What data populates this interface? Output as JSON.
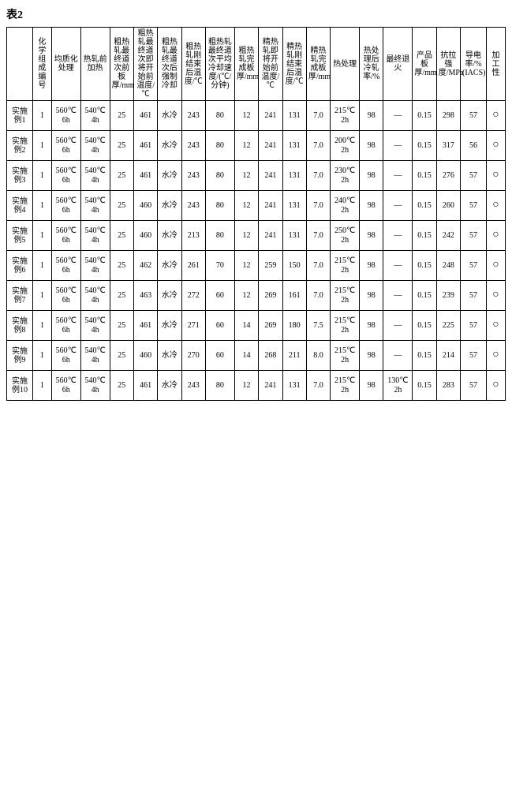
{
  "caption": "表2",
  "headers": [
    "",
    "化学组成编号",
    "均质化处理",
    "热轧前加热",
    "粗热轧最终道次前板厚/mm",
    "粗热轧最终道次即将开始前温度/℃",
    "粗热轧最终道次后强制冷却",
    "粗热轧刚结束后温度/℃",
    "粗热轧最终道次平均冷却速度/(℃/分钟)",
    "粗热轧完成板厚/mm",
    "精热轧即将开始前温度/℃",
    "精热轧刚结束后温度/℃",
    "精热轧完成板厚/mm",
    "热处理",
    "热处理后冷轧率/%",
    "最终退火",
    "产品板厚/mm",
    "抗拉强度/MPa",
    "导电率/%(IACS)",
    "加工性"
  ],
  "rows": [
    {
      "label": "实施例1",
      "chem": "1",
      "hom": "560℃\n6h",
      "preheat": "540℃\n4h",
      "rpt": "25",
      "rtb": "461",
      "cool": "水冷",
      "rta": "243",
      "rate": "80",
      "rft": "12",
      "ftb": "241",
      "fta": "131",
      "fft": "7.0",
      "ht": "215℃\n2h",
      "cr": "98",
      "fa": "—",
      "pt": "0.15",
      "ts": "298",
      "ec": "57",
      "wk": "○"
    },
    {
      "label": "实施例2",
      "chem": "1",
      "hom": "560℃\n6h",
      "preheat": "540℃\n4h",
      "rpt": "25",
      "rtb": "461",
      "cool": "水冷",
      "rta": "243",
      "rate": "80",
      "rft": "12",
      "ftb": "241",
      "fta": "131",
      "fft": "7.0",
      "ht": "200℃\n2h",
      "cr": "98",
      "fa": "—",
      "pt": "0.15",
      "ts": "317",
      "ec": "56",
      "wk": "○"
    },
    {
      "label": "实施例3",
      "chem": "1",
      "hom": "560℃\n6h",
      "preheat": "540℃\n4h",
      "rpt": "25",
      "rtb": "461",
      "cool": "水冷",
      "rta": "243",
      "rate": "80",
      "rft": "12",
      "ftb": "241",
      "fta": "131",
      "fft": "7.0",
      "ht": "230℃\n2h",
      "cr": "98",
      "fa": "—",
      "pt": "0.15",
      "ts": "276",
      "ec": "57",
      "wk": "○"
    },
    {
      "label": "实施例4",
      "chem": "1",
      "hom": "560℃\n6h",
      "preheat": "540℃\n4h",
      "rpt": "25",
      "rtb": "460",
      "cool": "水冷",
      "rta": "243",
      "rate": "80",
      "rft": "12",
      "ftb": "241",
      "fta": "131",
      "fft": "7.0",
      "ht": "240℃\n2h",
      "cr": "98",
      "fa": "—",
      "pt": "0.15",
      "ts": "260",
      "ec": "57",
      "wk": "○"
    },
    {
      "label": "实施例5",
      "chem": "1",
      "hom": "560℃\n6h",
      "preheat": "540℃\n4h",
      "rpt": "25",
      "rtb": "460",
      "cool": "水冷",
      "rta": "213",
      "rate": "80",
      "rft": "12",
      "ftb": "241",
      "fta": "131",
      "fft": "7.0",
      "ht": "250℃\n2h",
      "cr": "98",
      "fa": "—",
      "pt": "0.15",
      "ts": "242",
      "ec": "57",
      "wk": "○"
    },
    {
      "label": "实施例6",
      "chem": "1",
      "hom": "560℃\n6h",
      "preheat": "540℃\n4h",
      "rpt": "25",
      "rtb": "462",
      "cool": "水冷",
      "rta": "261",
      "rate": "70",
      "rft": "12",
      "ftb": "259",
      "fta": "150",
      "fft": "7.0",
      "ht": "215℃\n2h",
      "cr": "98",
      "fa": "—",
      "pt": "0.15",
      "ts": "248",
      "ec": "57",
      "wk": "○"
    },
    {
      "label": "实施例7",
      "chem": "1",
      "hom": "560℃\n6h",
      "preheat": "540℃\n4h",
      "rpt": "25",
      "rtb": "463",
      "cool": "水冷",
      "rta": "272",
      "rate": "60",
      "rft": "12",
      "ftb": "269",
      "fta": "161",
      "fft": "7.0",
      "ht": "215℃\n2h",
      "cr": "98",
      "fa": "—",
      "pt": "0.15",
      "ts": "239",
      "ec": "57",
      "wk": "○"
    },
    {
      "label": "实施例8",
      "chem": "1",
      "hom": "560℃\n6h",
      "preheat": "540℃\n4h",
      "rpt": "25",
      "rtb": "461",
      "cool": "水冷",
      "rta": "271",
      "rate": "60",
      "rft": "14",
      "ftb": "269",
      "fta": "180",
      "fft": "7.5",
      "ht": "215℃\n2h",
      "cr": "98",
      "fa": "—",
      "pt": "0.15",
      "ts": "225",
      "ec": "57",
      "wk": "○"
    },
    {
      "label": "实施例9",
      "chem": "1",
      "hom": "560℃\n6h",
      "preheat": "540℃\n4h",
      "rpt": "25",
      "rtb": "460",
      "cool": "水冷",
      "rta": "270",
      "rate": "60",
      "rft": "14",
      "ftb": "268",
      "fta": "211",
      "fft": "8.0",
      "ht": "215℃\n2h",
      "cr": "98",
      "fa": "—",
      "pt": "0.15",
      "ts": "214",
      "ec": "57",
      "wk": "○"
    },
    {
      "label": "实施例10",
      "chem": "1",
      "hom": "560℃\n6h",
      "preheat": "540℃\n4h",
      "rpt": "25",
      "rtb": "461",
      "cool": "水冷",
      "rta": "243",
      "rate": "80",
      "rft": "12",
      "ftb": "241",
      "fta": "131",
      "fft": "7.0",
      "ht": "215℃\n2h",
      "cr": "98",
      "fa": "130℃\n2h",
      "pt": "0.15",
      "ts": "283",
      "ec": "57",
      "wk": "○"
    }
  ]
}
